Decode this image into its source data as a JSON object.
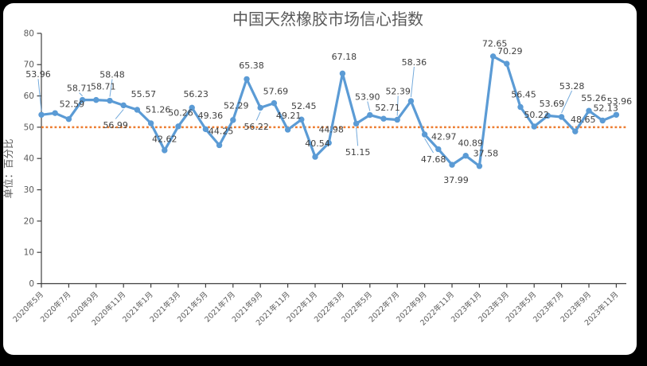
{
  "frame": {
    "background_color": "#000000",
    "card_color": "#ffffff"
  },
  "chart_data": {
    "type": "line",
    "title": "中国天然橡胶市场信心指数",
    "ylabel": "单位：百分比",
    "ylim": [
      0,
      80
    ],
    "ytick_step": 10,
    "xtick_every": 2,
    "grid": false,
    "legend_position": "none",
    "series_name": "中国天然橡胶市场信心指数",
    "series_color": "#5B9BD5",
    "label_color": "#404040",
    "axis_color": "#3f3f3f",
    "tick_label_color": "#595959",
    "title_color": "#595959",
    "reference_line": {
      "value": 50,
      "color": "#ED7D31",
      "style": "dotted"
    },
    "x_tick_labels": [
      "2020年5月",
      "2020年7月",
      "2020年9月",
      "2020年11月",
      "2021年1月",
      "2021年3月",
      "2021年5月",
      "2021年7月",
      "2021年9月",
      "2021年11月",
      "2022年1月",
      "2022年3月",
      "2022年5月",
      "2022年7月",
      "2022年9月",
      "2022年11月",
      "2023年1月",
      "2023年3月",
      "2023年5月",
      "2023年7月",
      "2023年9月",
      "2023年11月"
    ],
    "points": [
      {
        "month": "2020年5月",
        "value": 53.96,
        "label": "53.96",
        "offset": [
          -4,
          -51
        ],
        "leader": true
      },
      {
        "month": "2020年6月",
        "value": 54.5,
        "label": null
      },
      {
        "month": "2020年7月",
        "value": 52.59,
        "label": "52.59",
        "offset": [
          4,
          -19
        ]
      },
      {
        "month": "2020年8月",
        "value": 58.71,
        "label": "58.71",
        "offset": [
          -4,
          -15
        ],
        "leader": true
      },
      {
        "month": "2020年9月",
        "value": 58.71,
        "label": "58.71",
        "offset": [
          9,
          -17
        ]
      },
      {
        "month": "2020年10月",
        "value": 58.48,
        "label": "58.48",
        "offset": [
          3,
          -33
        ],
        "leader": true
      },
      {
        "month": "2020年11月",
        "value": 56.99,
        "label": "56.99",
        "offset": [
          -10,
          25
        ],
        "leader": true
      },
      {
        "month": "2020年12月",
        "value": 55.57,
        "label": "55.57",
        "offset": [
          8,
          -20
        ]
      },
      {
        "month": "2021年1月",
        "value": 51.26,
        "label": "51.26",
        "offset": [
          9,
          -17
        ]
      },
      {
        "month": "2021年2月",
        "value": 42.62,
        "label": "42.62",
        "offset": [
          0,
          -14
        ]
      },
      {
        "month": "2021年3月",
        "value": 50.26,
        "label": "50.26",
        "offset": [
          3,
          -17
        ]
      },
      {
        "month": "2021年4月",
        "value": 56.23,
        "label": "56.23",
        "offset": [
          5,
          -17
        ]
      },
      {
        "month": "2021年5月",
        "value": 49.36,
        "label": "49.36",
        "offset": [
          6,
          -17
        ]
      },
      {
        "month": "2021年6月",
        "value": 44.25,
        "label": "44.25",
        "offset": [
          2,
          -18
        ]
      },
      {
        "month": "2021年7月",
        "value": 52.29,
        "label": "52.29",
        "offset": [
          4,
          -18
        ]
      },
      {
        "month": "2021年8月",
        "value": 65.38,
        "label": "65.38",
        "offset": [
          6,
          -17
        ]
      },
      {
        "month": "2021年9月",
        "value": 56.22,
        "label": "56.22",
        "offset": [
          -5,
          24
        ],
        "leader": true
      },
      {
        "month": "2021年10月",
        "value": 57.69,
        "label": "57.69",
        "offset": [
          2,
          -15
        ]
      },
      {
        "month": "2021年11月",
        "value": 49.21,
        "label": "49.21",
        "offset": [
          1,
          -18
        ]
      },
      {
        "month": "2021年12月",
        "value": 52.45,
        "label": "52.45",
        "offset": [
          3,
          -17
        ]
      },
      {
        "month": "2022年1月",
        "value": 40.54,
        "label": "40.54",
        "offset": [
          3,
          -17
        ]
      },
      {
        "month": "2022年2月",
        "value": 44.98,
        "label": "44.98",
        "offset": [
          3,
          -17
        ]
      },
      {
        "month": "2022年3月",
        "value": 67.18,
        "label": "67.18",
        "offset": [
          2,
          -21
        ]
      },
      {
        "month": "2022年4月",
        "value": 51.15,
        "label": "51.15",
        "offset": [
          2,
          36
        ],
        "leader": true
      },
      {
        "month": "2022年5月",
        "value": 53.9,
        "label": "53.90",
        "offset": [
          -3,
          -23
        ],
        "leader": true
      },
      {
        "month": "2022年6月",
        "value": 52.71,
        "label": "52.71",
        "offset": [
          5,
          -14
        ]
      },
      {
        "month": "2022年7月",
        "value": 52.39,
        "label": "52.39",
        "offset": [
          1,
          -36
        ],
        "leader": true
      },
      {
        "month": "2022年8月",
        "value": 58.36,
        "label": "58.36",
        "offset": [
          4,
          -49
        ],
        "leader": true
      },
      {
        "month": "2022年9月",
        "value": 47.68,
        "label": "47.68",
        "offset": [
          11,
          31
        ],
        "leader": true
      },
      {
        "month": "2022年10月",
        "value": 42.97,
        "label": "42.97",
        "offset": [
          7,
          -16
        ]
      },
      {
        "month": "2022年11月",
        "value": 37.99,
        "label": "37.99",
        "offset": [
          5,
          19
        ]
      },
      {
        "month": "2022年12月",
        "value": 40.89,
        "label": "40.89",
        "offset": [
          6,
          -16
        ]
      },
      {
        "month": "2023年1月",
        "value": 37.58,
        "label": "37.58",
        "offset": [
          8,
          -16
        ]
      },
      {
        "month": "2023年2月",
        "value": 72.65,
        "label": "72.65",
        "offset": [
          2,
          -16
        ]
      },
      {
        "month": "2023年3月",
        "value": 70.29,
        "label": "70.29",
        "offset": [
          4,
          -16
        ]
      },
      {
        "month": "2023年4月",
        "value": 56.45,
        "label": "56.45",
        "offset": [
          4,
          -16
        ]
      },
      {
        "month": "2023年5月",
        "value": 50.22,
        "label": "50.22",
        "offset": [
          3,
          -15
        ]
      },
      {
        "month": "2023年6月",
        "value": 53.69,
        "label": "53.69",
        "offset": [
          5,
          -15
        ]
      },
      {
        "month": "2023年7月",
        "value": 53.28,
        "label": "53.28",
        "offset": [
          13,
          -39
        ],
        "leader": true
      },
      {
        "month": "2023年8月",
        "value": 48.65,
        "label": "48.65",
        "offset": [
          10,
          -15
        ]
      },
      {
        "month": "2023年9月",
        "value": 55.26,
        "label": "55.26",
        "offset": [
          6,
          -16
        ]
      },
      {
        "month": "2023年10月",
        "value": 52.13,
        "label": "52.13",
        "offset": [
          4,
          -16
        ]
      },
      {
        "month": "2023年11月",
        "value": 53.96,
        "label": "53.96",
        "offset": [
          4,
          -17
        ]
      }
    ]
  }
}
